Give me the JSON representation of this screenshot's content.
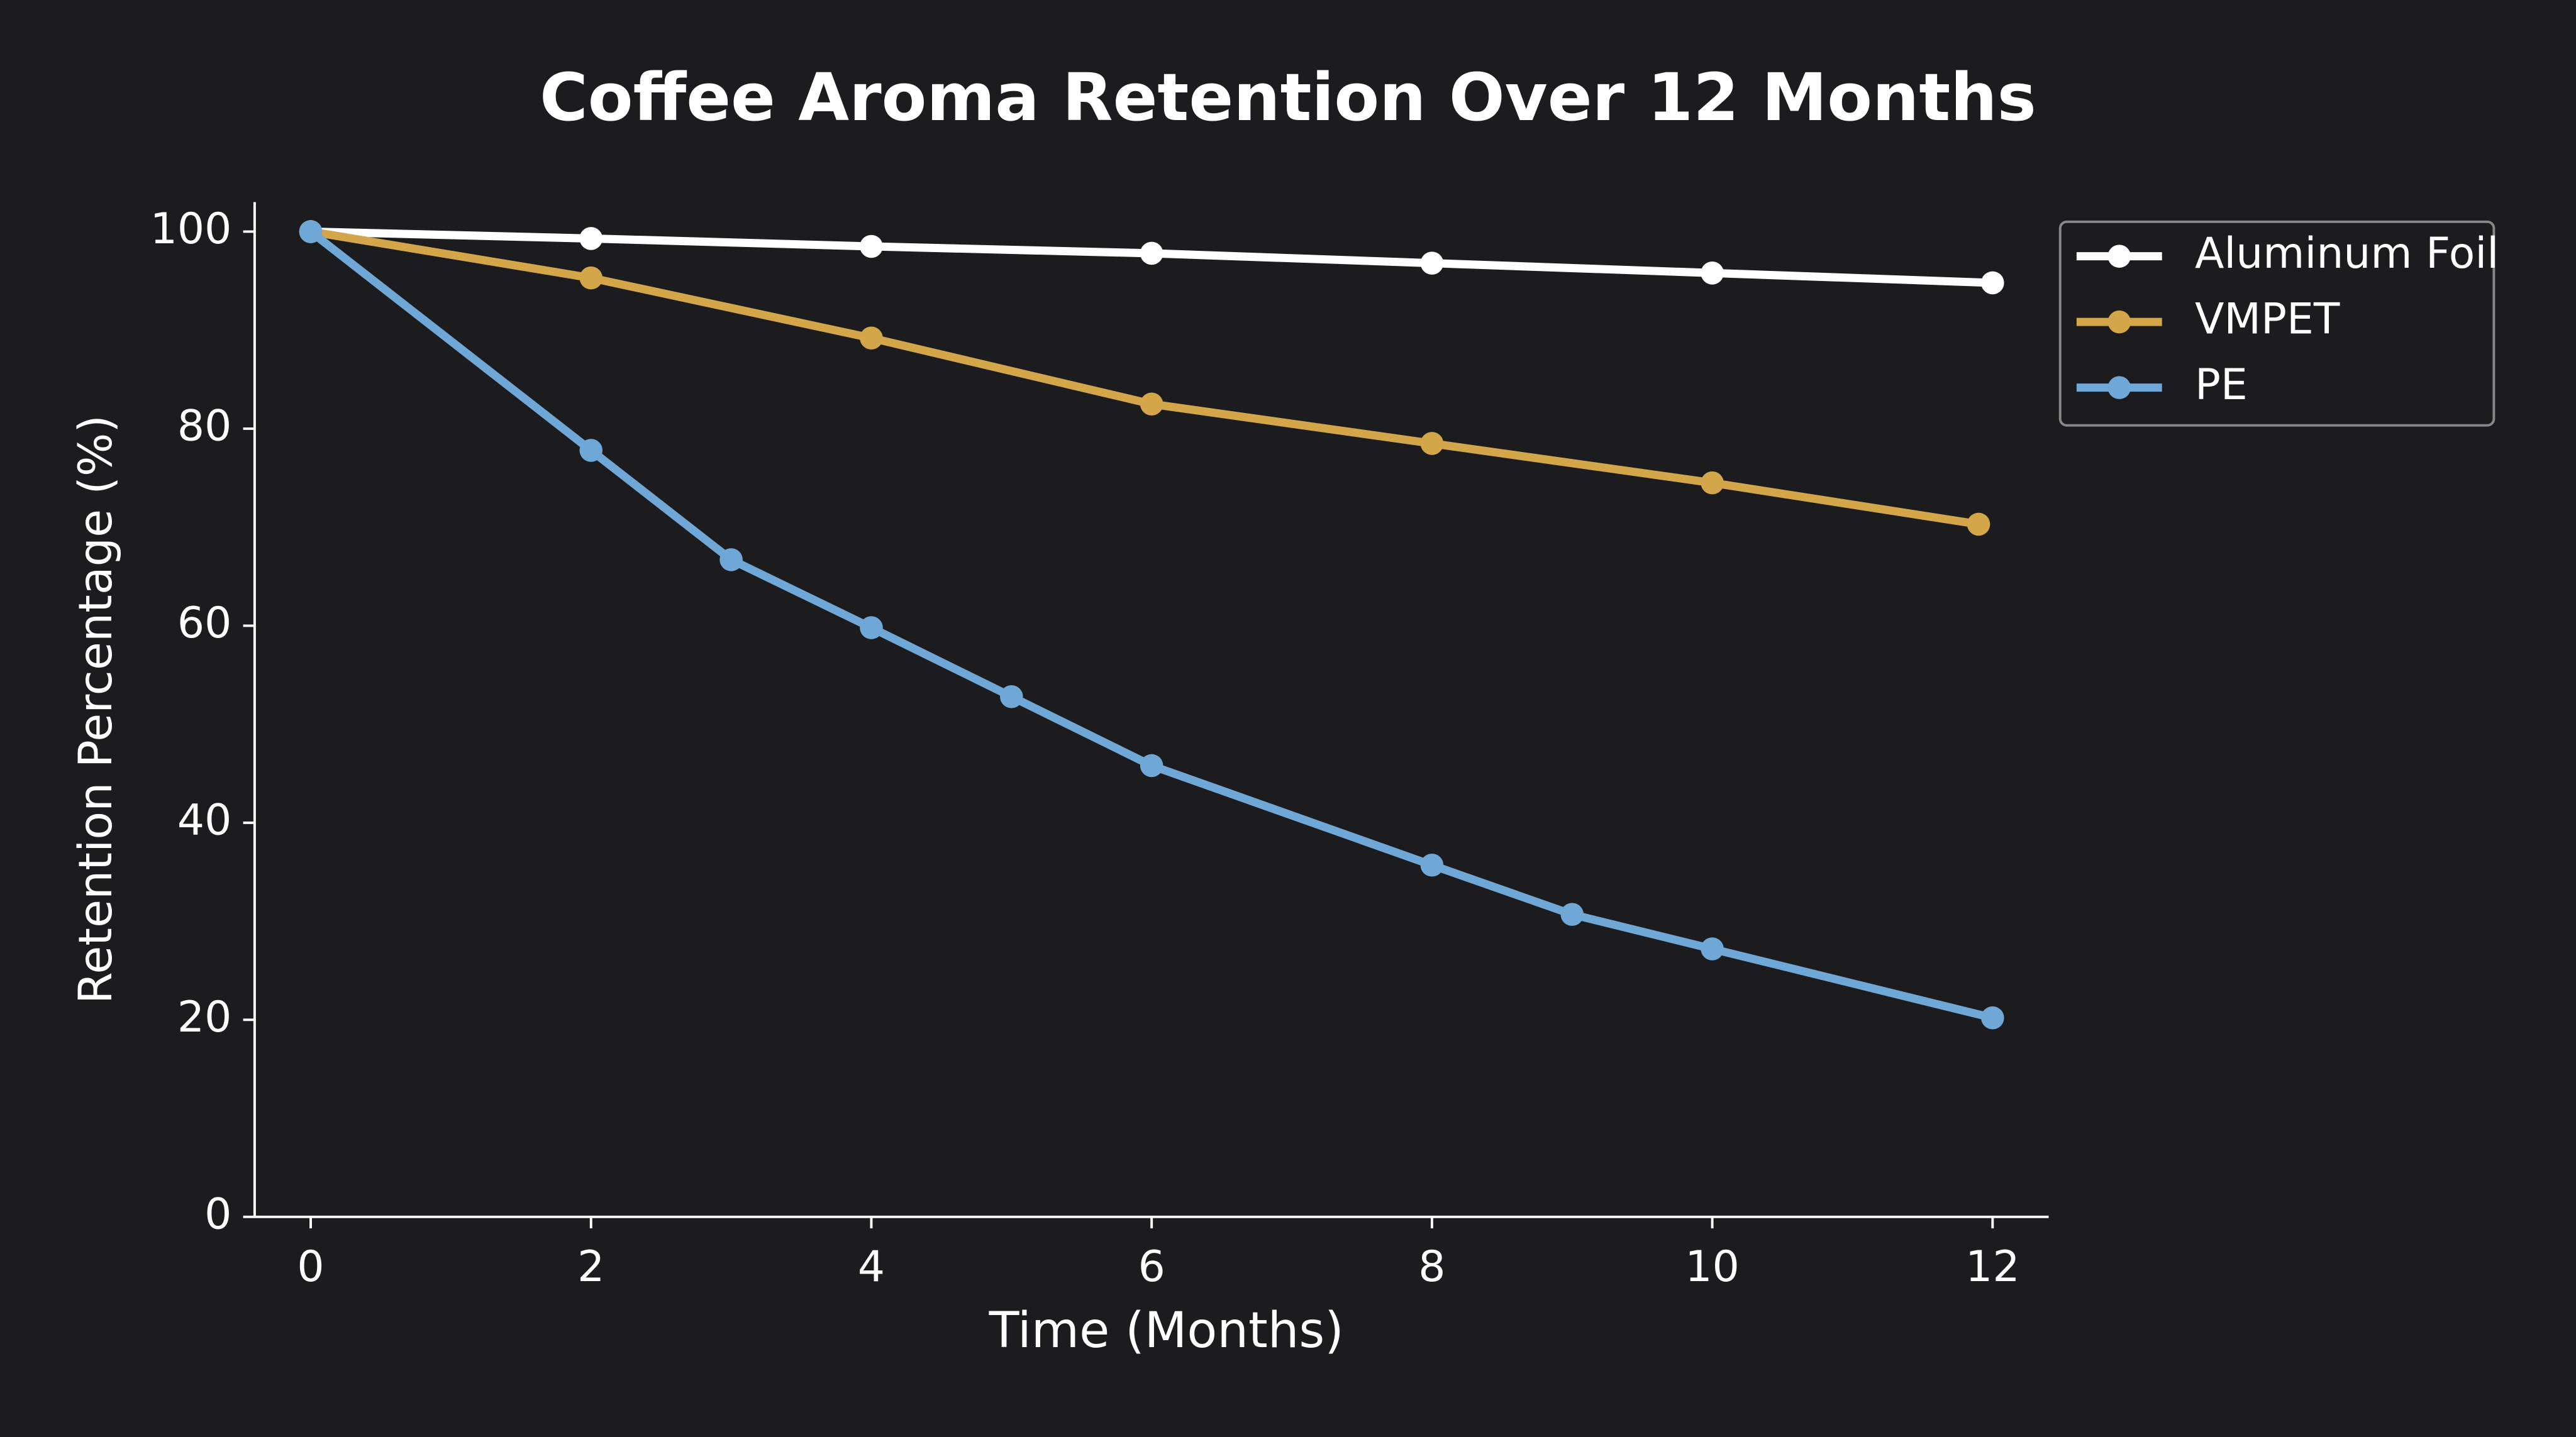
{
  "chart_data": {
    "type": "line",
    "title": "Coffee Aroma Retention Over 12 Months",
    "xlabel": "Time (Months)",
    "ylabel": "Retention Percentage (%)",
    "xlim": [
      -0.4,
      12.4
    ],
    "ylim": [
      0,
      103
    ],
    "xticks": [
      0,
      2,
      4,
      6,
      8,
      10,
      12
    ],
    "yticks": [
      0,
      20,
      40,
      60,
      80,
      100
    ],
    "legend": "upper right",
    "series": [
      {
        "name": "Aluminum Foil",
        "color": "#ffffff",
        "x": [
          0,
          2,
          4,
          6,
          8,
          10,
          12
        ],
        "values": [
          100,
          99.3,
          98.5,
          97.8,
          96.8,
          95.8,
          94.8
        ]
      },
      {
        "name": "VMPET",
        "color": "#d4a64a",
        "x": [
          0,
          2,
          4,
          6,
          8,
          10,
          11.9
        ],
        "values": [
          100,
          95.3,
          89.2,
          82.5,
          78.5,
          74.5,
          70.3
        ]
      },
      {
        "name": "PE",
        "color": "#6fa8d6",
        "x": [
          0,
          2,
          3,
          4,
          5,
          6,
          8,
          9,
          10,
          12
        ],
        "values": [
          100,
          77.8,
          66.7,
          59.8,
          52.8,
          45.8,
          35.7,
          30.7,
          27.2,
          20.2
        ]
      }
    ]
  }
}
